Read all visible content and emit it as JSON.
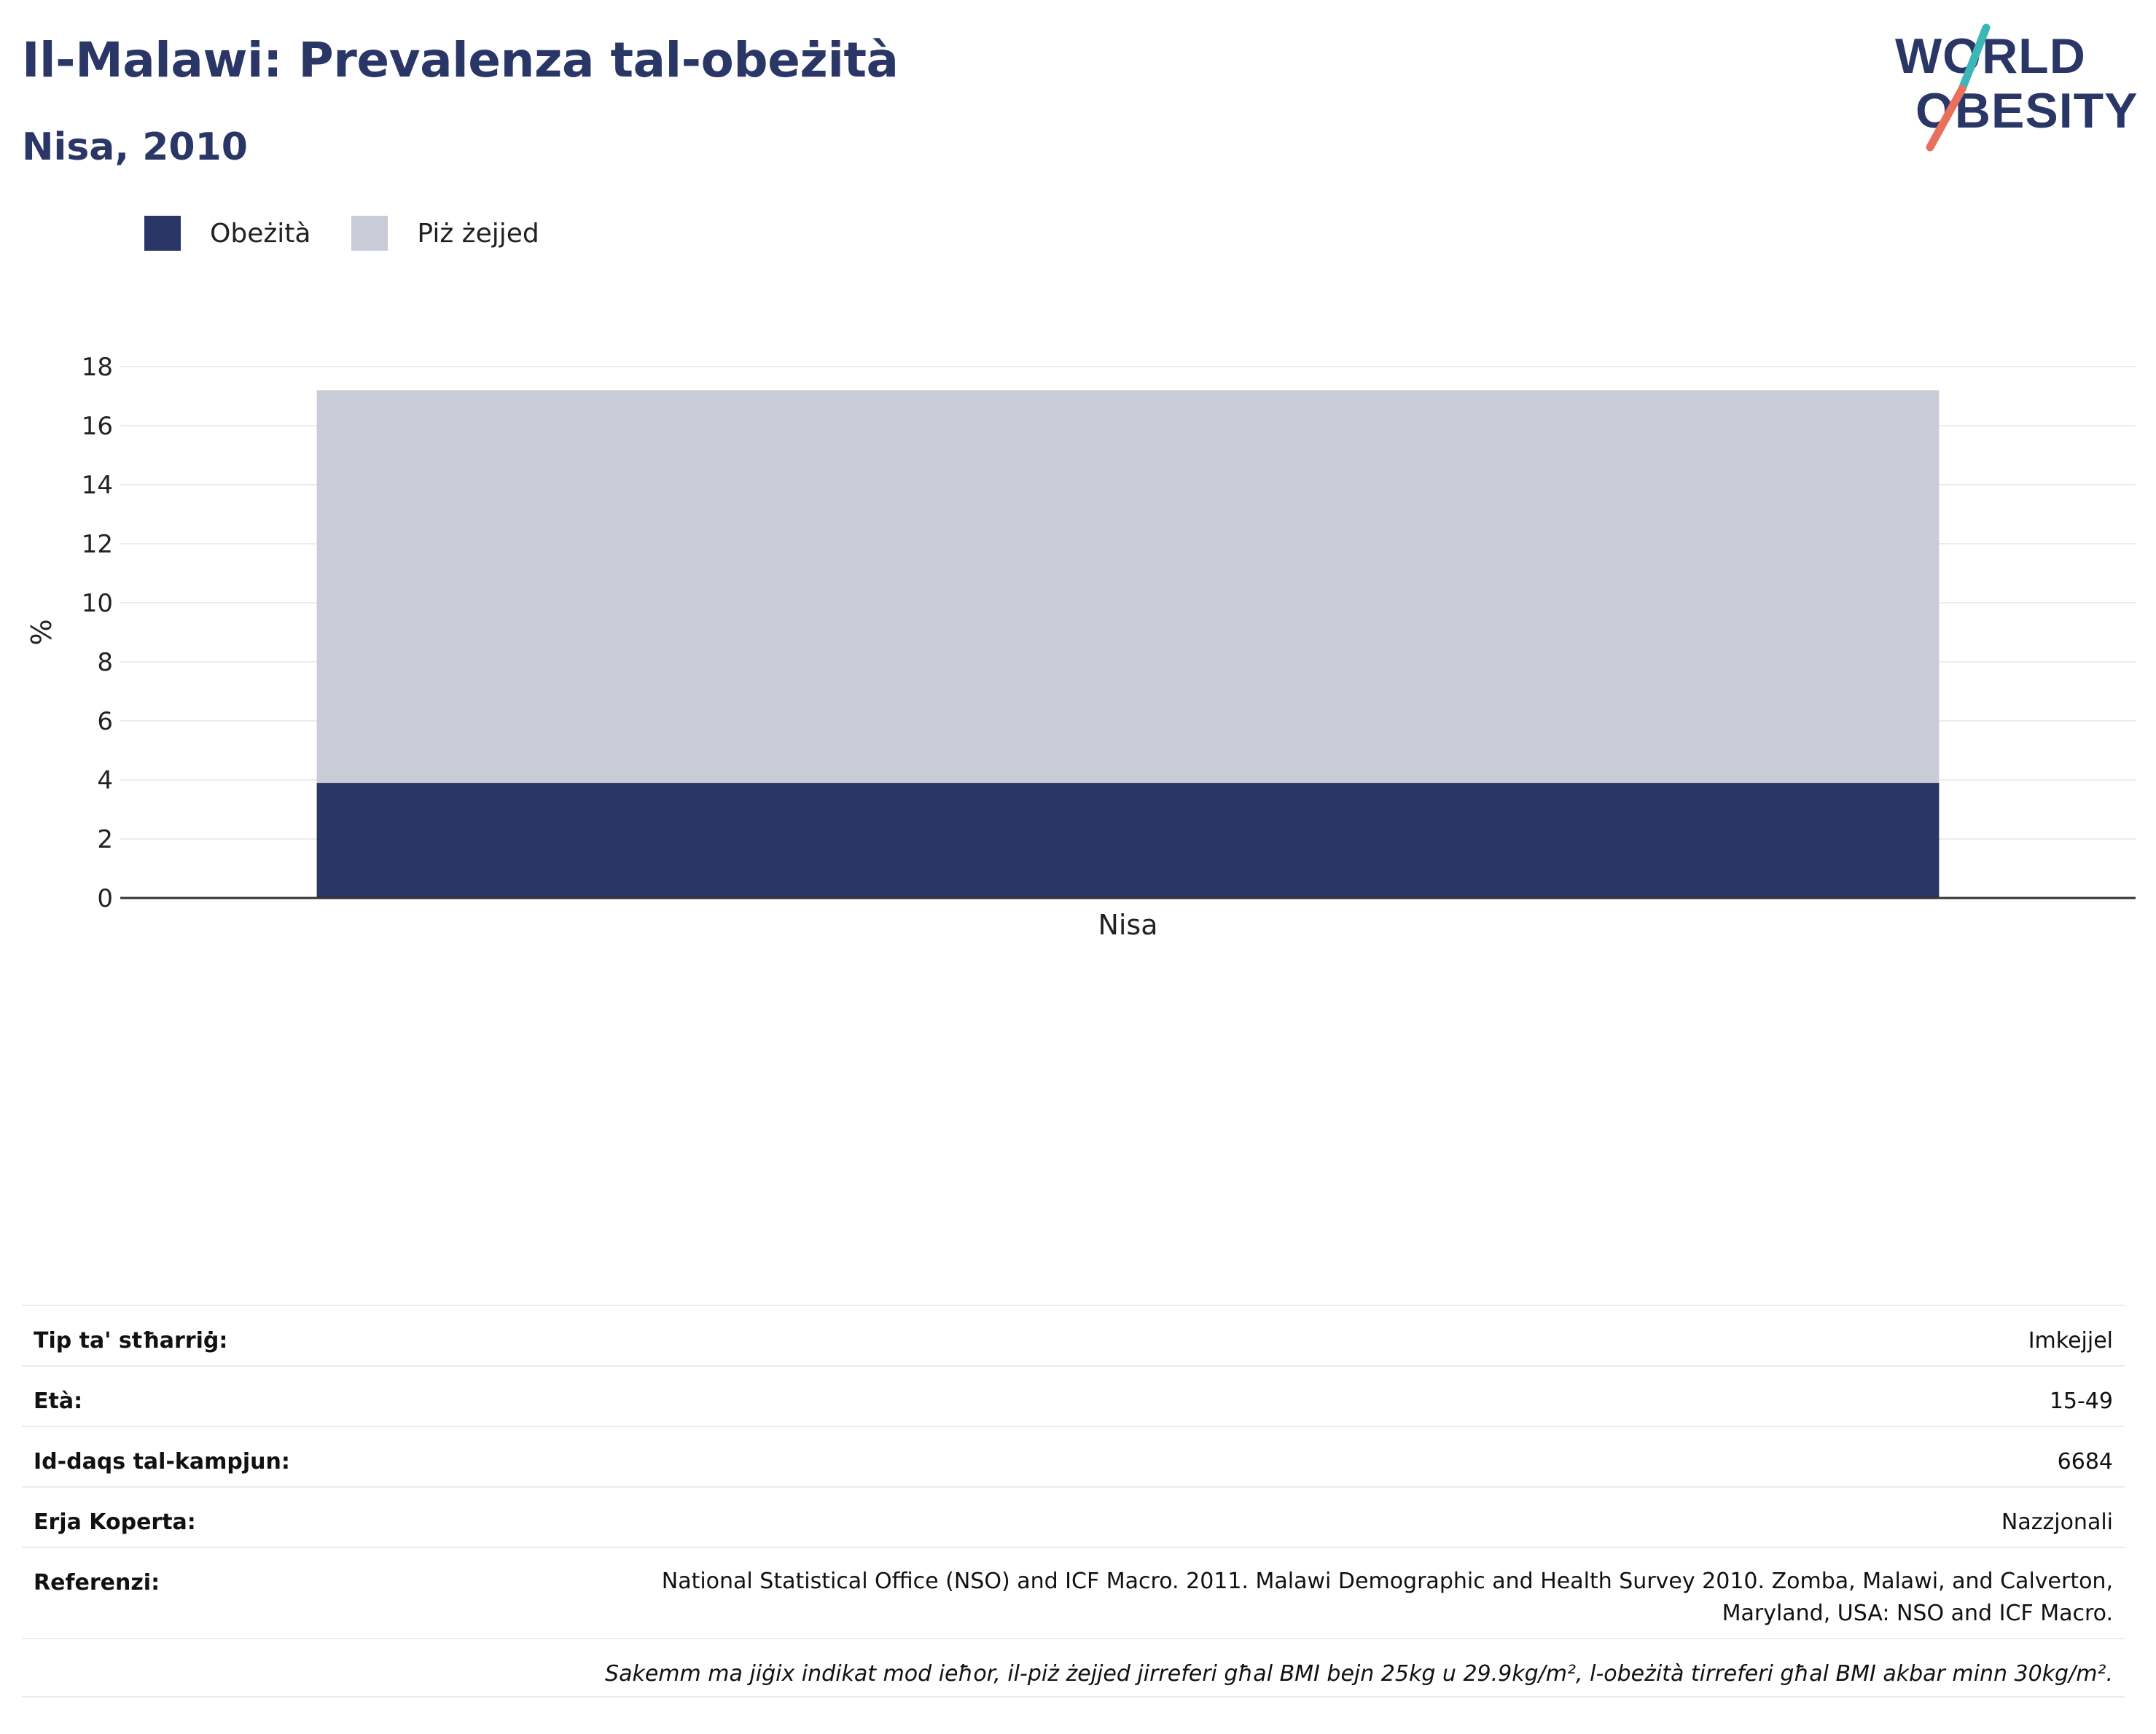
{
  "header": {
    "title": "Il-Malawi: Prevalenza tal-obeżità",
    "subtitle": "Nisa, 2010"
  },
  "logo": {
    "line1": "WORLD",
    "line2": "OBESITY"
  },
  "colors": {
    "obesity": "#2a3766",
    "overweight": "#c9ccd7",
    "text": "#2a3766",
    "logo_teal": "#3cb6b6",
    "logo_coral": "#e8705c"
  },
  "legend": [
    {
      "label": "Obeżità",
      "color": "#2a3766"
    },
    {
      "label": "Piż żejjed",
      "color": "#c9ccd7"
    }
  ],
  "chart_data": {
    "type": "bar",
    "stacked": true,
    "categories": [
      "Nisa"
    ],
    "series": [
      {
        "name": "Obeżità",
        "values": [
          3.9
        ]
      },
      {
        "name": "Piż żejjed",
        "values": [
          13.3
        ]
      }
    ],
    "ylabel": "%",
    "xlabel": "",
    "ylim": [
      0,
      18
    ],
    "yticks": [
      0,
      2,
      4,
      6,
      8,
      10,
      12,
      14,
      16,
      18
    ],
    "grid": true,
    "legend_position": "top-left"
  },
  "meta": {
    "rows": [
      {
        "label": "Tip ta' stħarriġ:",
        "value": "Imkejjel"
      },
      {
        "label": "Età:",
        "value": "15-49"
      },
      {
        "label": "Id-daqs tal-kampjun:",
        "value": "6684"
      },
      {
        "label": "Erja Koperta:",
        "value": "Nazzjonali"
      }
    ],
    "reference_label": "Referenzi:",
    "reference_lines": [
      "National Statistical Office (NSO) and ICF Macro. 2011. Malawi Demographic and Health Survey 2010. Zomba, Malawi, and Calverton,",
      "Maryland, USA: NSO and ICF Macro."
    ],
    "note": "Sakemm ma jiġix indikat mod ieħor, il-piż żejjed jirreferi għal BMI bejn 25kg u 29.9kg/m², l-obeżità tirreferi għal BMI akbar minn 30kg/m²."
  }
}
